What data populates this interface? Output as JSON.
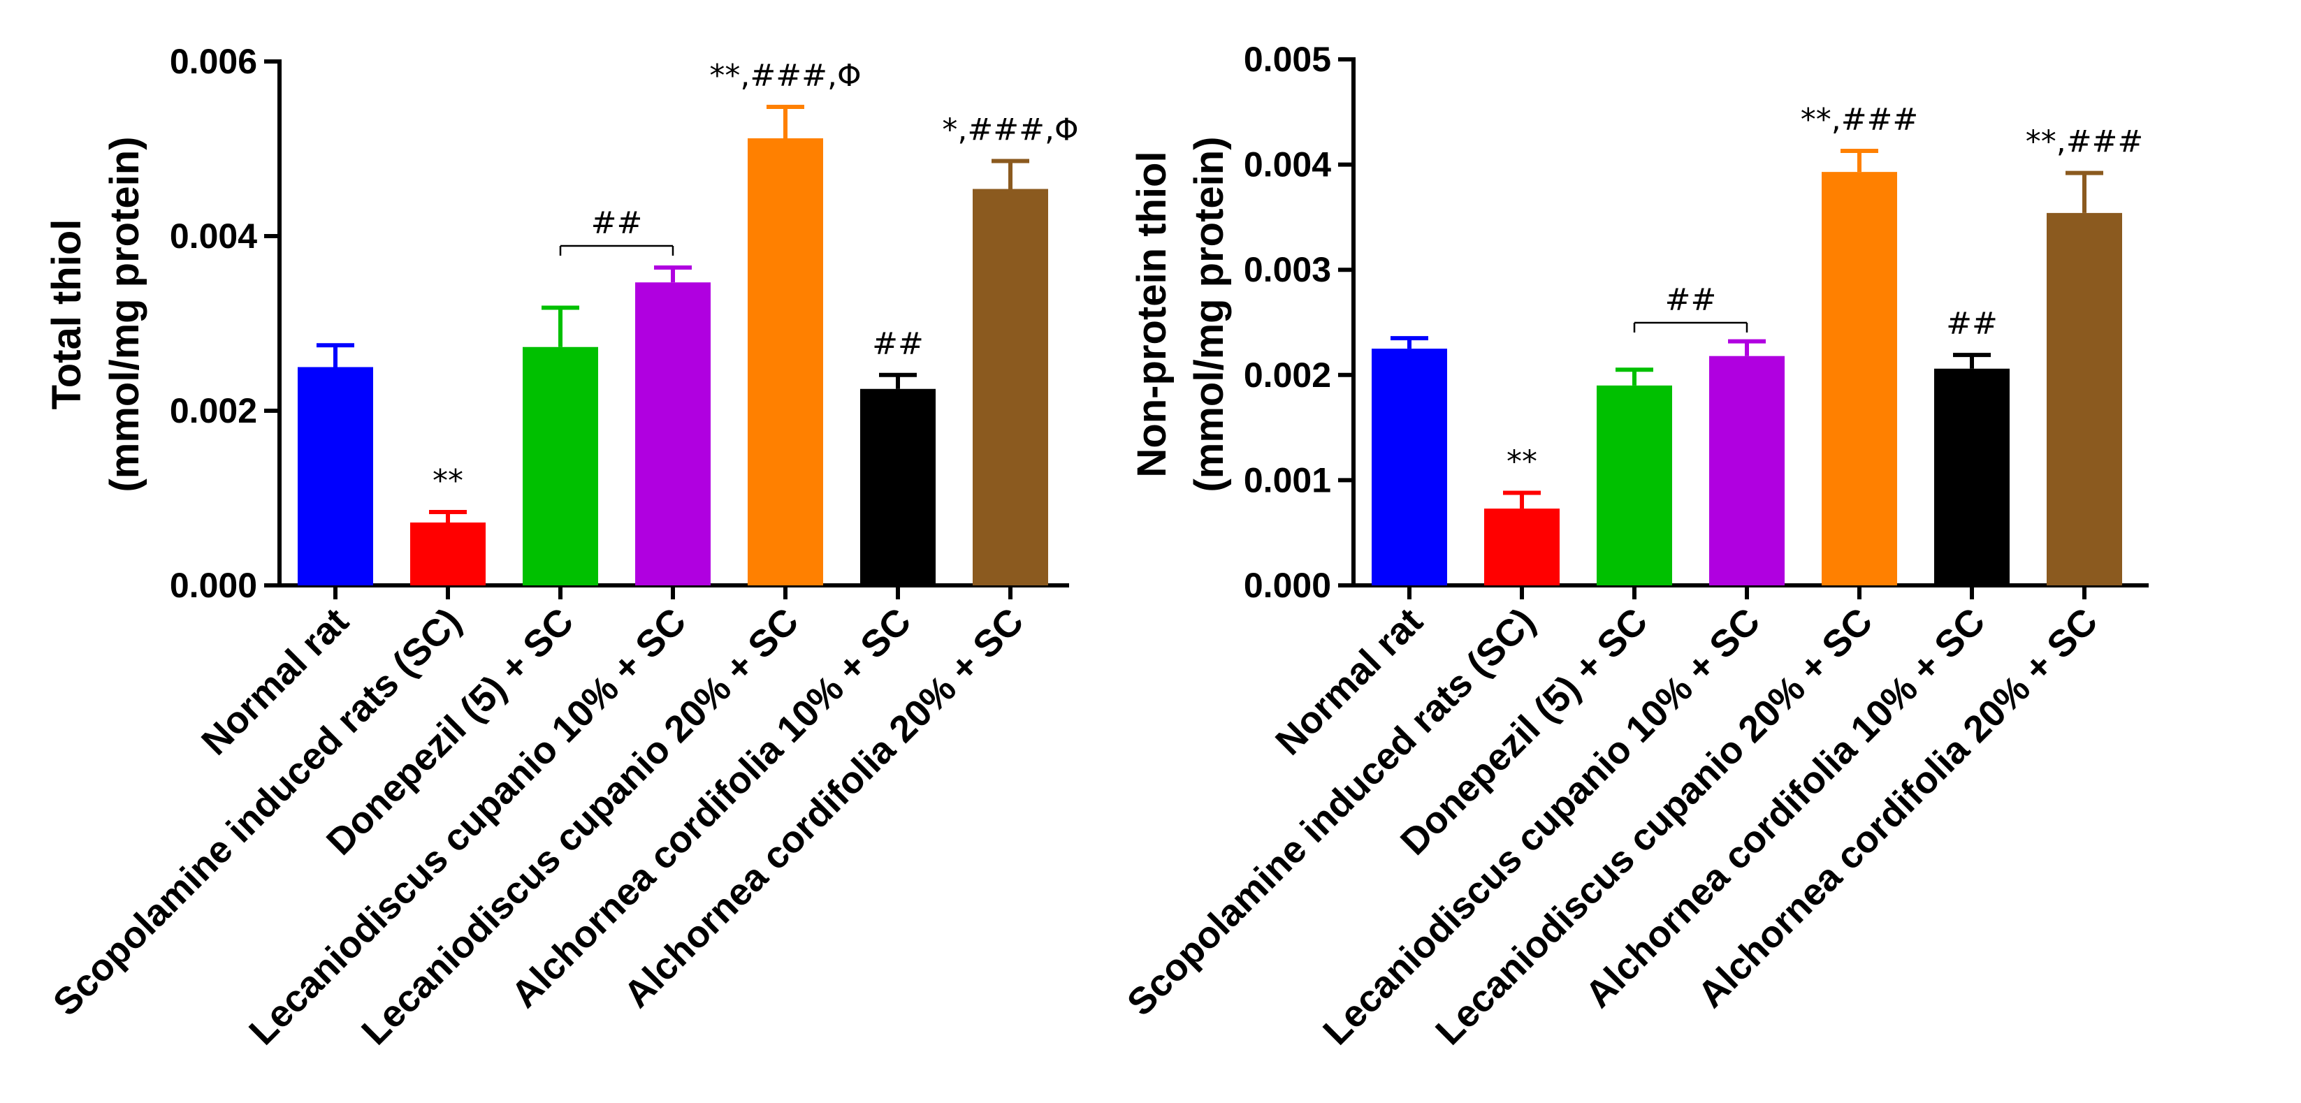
{
  "chart_data": [
    {
      "type": "bar",
      "ylabel_line1": "Total thiol",
      "ylabel_line2": "(mmol/mg protein)",
      "ylim": [
        0,
        0.006
      ],
      "yticks": [
        "0.000",
        "0.002",
        "0.004",
        "0.006"
      ],
      "categories": [
        "Normal rat",
        "Scopolamine induced rats (SC)",
        "Donepezil (5) + SC",
        "Lecaniodiscus cupanio 10% + SC",
        "Lecaniodiscus cupanio 20% + SC",
        "Alchornea cordifolia 10% + SC",
        "Alchornea cordifolia 20% + SC"
      ],
      "values": [
        0.0025,
        0.00072,
        0.00273,
        0.00347,
        0.00512,
        0.00225,
        0.00454
      ],
      "errors": [
        0.00025,
        0.00012,
        0.00045,
        0.00017,
        0.00036,
        0.00016,
        0.00032
      ],
      "colors": [
        "#0000ff",
        "#ff0000",
        "#00c000",
        "#b000e0",
        "#ff8000",
        "#000000",
        "#8b5a1f"
      ],
      "bar_annotations": [
        "",
        "**",
        "",
        "",
        "**,###,Φ",
        "##",
        "*,###,Φ"
      ],
      "bracket": {
        "from": 2,
        "to": 3,
        "label": "##"
      },
      "grid": false,
      "legend": "none"
    },
    {
      "type": "bar",
      "ylabel_line1": "Non-protein thiol",
      "ylabel_line2": "(mmol/mg protein)",
      "ylim": [
        0,
        0.005
      ],
      "yticks": [
        "0.000",
        "0.001",
        "0.002",
        "0.003",
        "0.004",
        "0.005"
      ],
      "categories": [
        "Normal rat",
        "Scopolamine induced rats (SC)",
        "Donepezil (5) + SC",
        "Lecaniodiscus cupanio 10% + SC",
        "Lecaniodiscus cupanio 20% + SC",
        "Alchornea cordifolia 10% + SC",
        "Alchornea cordifolia 20% + SC"
      ],
      "values": [
        0.00225,
        0.00073,
        0.0019,
        0.00218,
        0.00393,
        0.00206,
        0.00354
      ],
      "errors": [
        0.0001,
        0.00015,
        0.00015,
        0.00014,
        0.0002,
        0.00013,
        0.00038
      ],
      "colors": [
        "#0000ff",
        "#ff0000",
        "#00c000",
        "#b000e0",
        "#ff8000",
        "#000000",
        "#8b5a1f"
      ],
      "bar_annotations": [
        "",
        "**",
        "",
        "",
        "**,###",
        "##",
        "**,###"
      ],
      "bracket": {
        "from": 2,
        "to": 3,
        "label": "##"
      },
      "grid": false,
      "legend": "none"
    }
  ]
}
